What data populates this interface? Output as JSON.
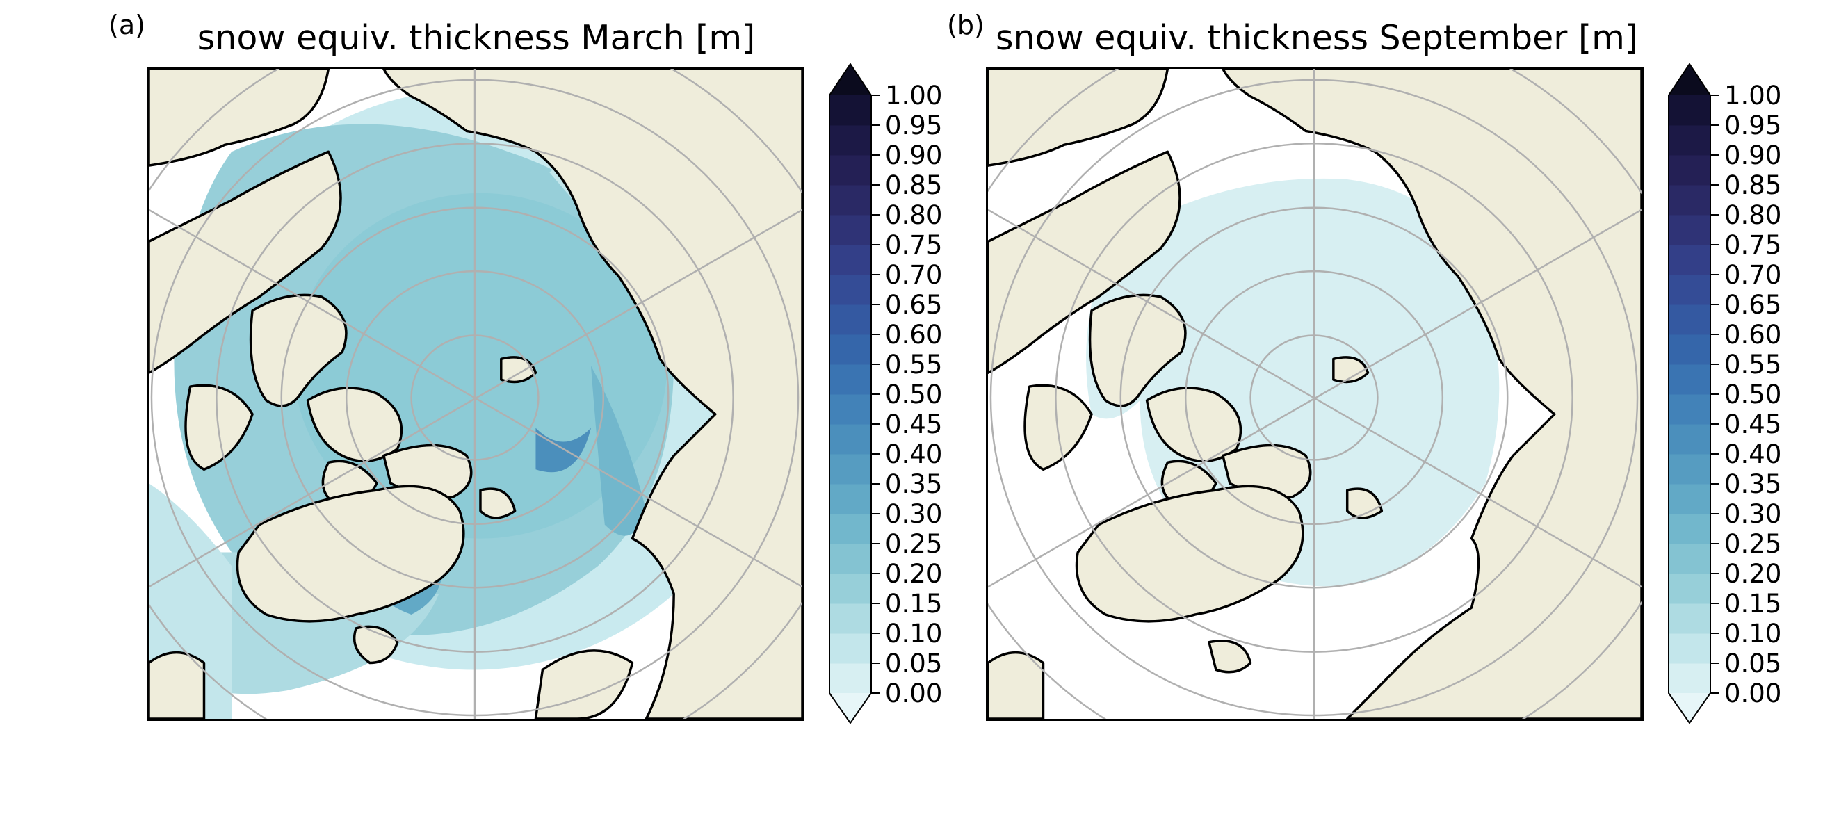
{
  "figure": {
    "panels": [
      {
        "id": "march",
        "label": "(a)",
        "title": "snow equiv. thickness March [m]",
        "month": "March"
      },
      {
        "id": "september",
        "label": "(b)",
        "title": "snow equiv. thickness September [m]",
        "month": "September"
      }
    ]
  },
  "colorbar": {
    "ticks": [
      "1.00",
      "0.95",
      "0.90",
      "0.85",
      "0.80",
      "0.75",
      "0.70",
      "0.65",
      "0.60",
      "0.55",
      "0.50",
      "0.45",
      "0.40",
      "0.35",
      "0.30",
      "0.25",
      "0.20",
      "0.15",
      "0.10",
      "0.05",
      "0.00"
    ],
    "extend": "both",
    "colors": [
      "#d7eff2",
      "#c3e6eb",
      "#aedbe2",
      "#97cfd9",
      "#84c3d2",
      "#72b7cc",
      "#62a9c6",
      "#569cc1",
      "#4b8fbc",
      "#4282b8",
      "#3a74b2",
      "#3566aa",
      "#3459a1",
      "#344c96",
      "#333f88",
      "#2f3376",
      "#2a2965",
      "#242055",
      "#1c1946",
      "#141235"
    ],
    "extend_low_color": "#e7f6f8",
    "extend_high_color": "#0b0b1e"
  },
  "map_colors": {
    "land": "#efeddb",
    "coast": "#000000",
    "grid": "#b0b0b0"
  }
}
